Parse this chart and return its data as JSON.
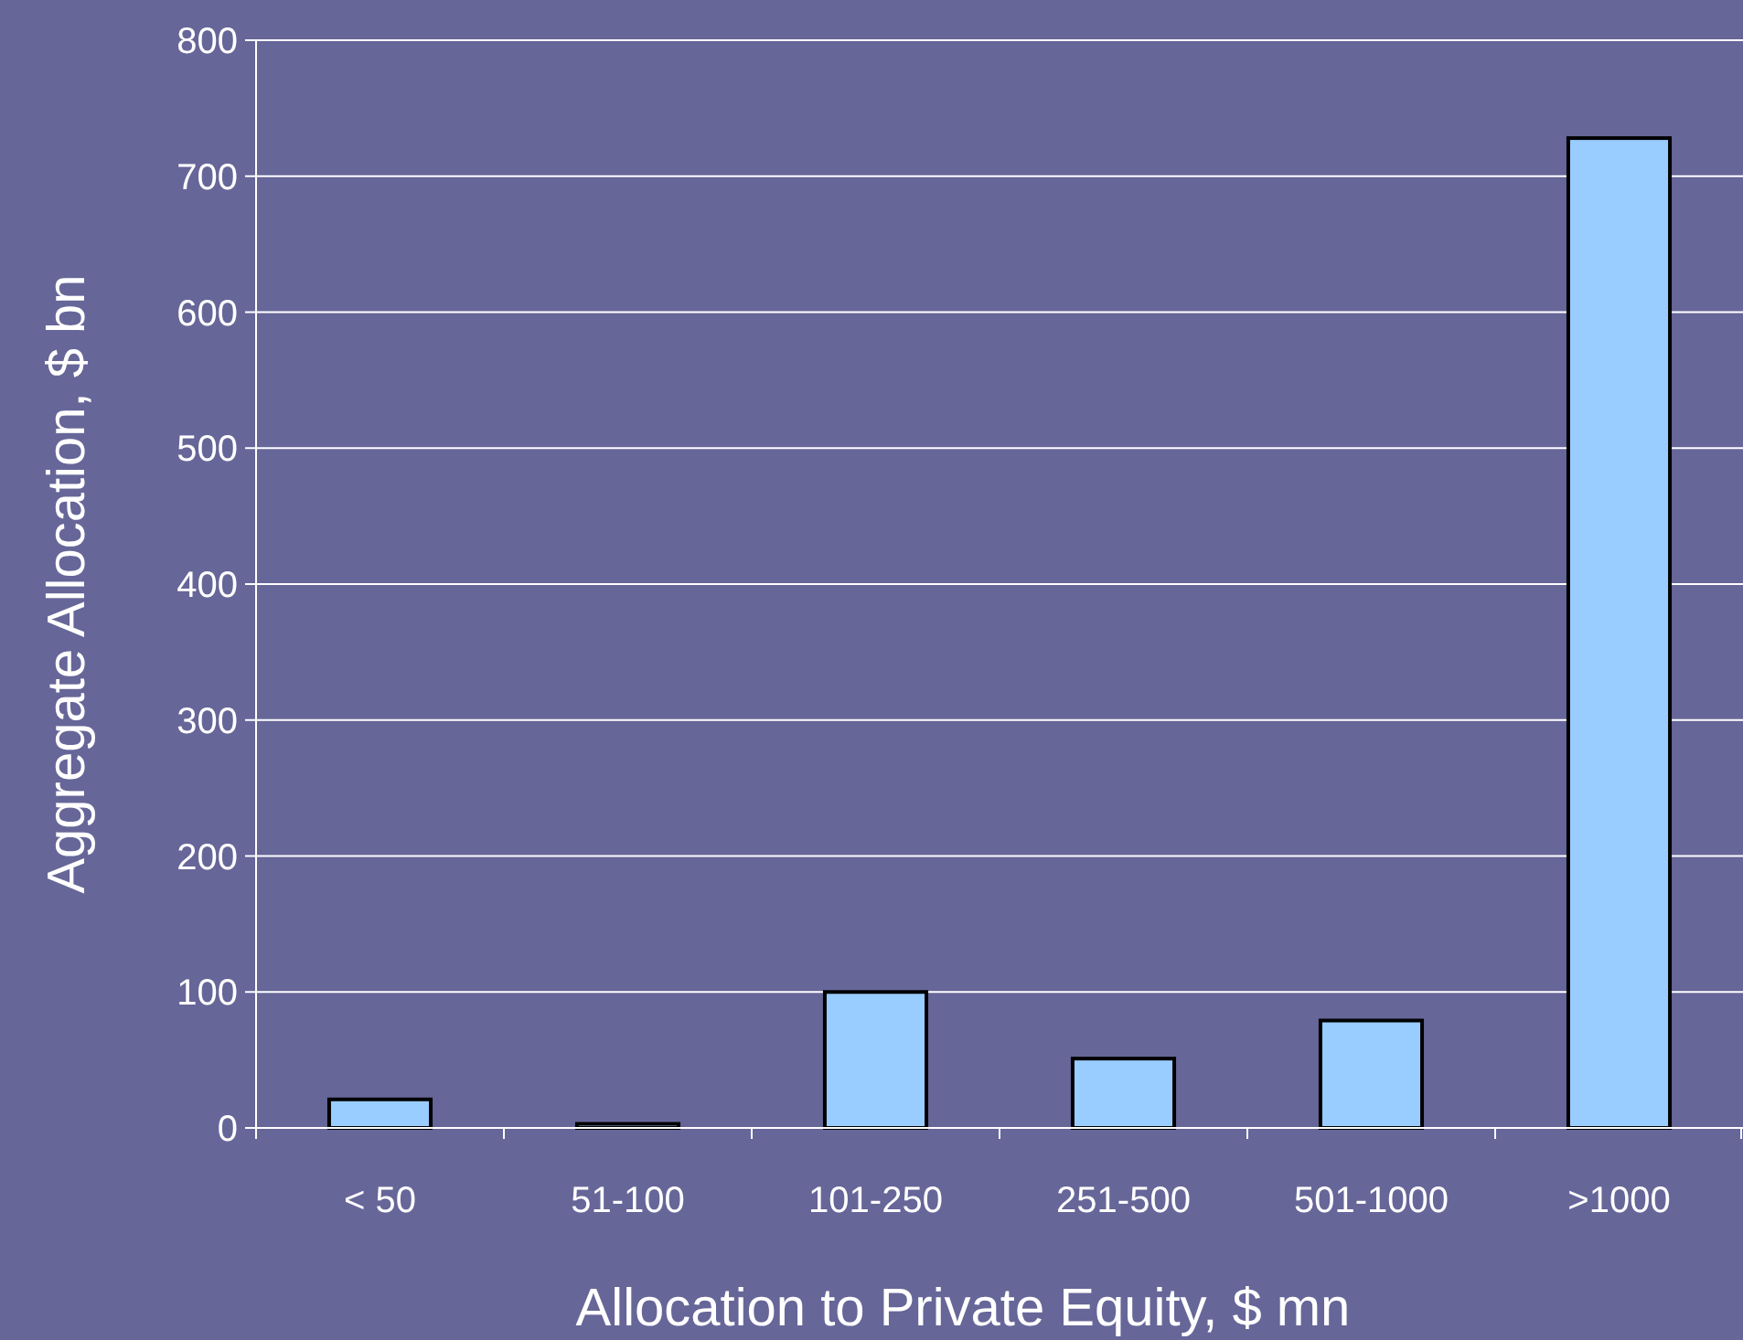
{
  "chart_data": {
    "type": "bar",
    "xlabel": "Allocation to Private Equity, $ mn",
    "ylabel": "Aggregate Allocation, $ bn",
    "categories": [
      "< 50",
      "51-100",
      "101-250",
      "251-500",
      "501-1000",
      ">1000"
    ],
    "values": [
      21,
      3,
      100,
      51,
      79,
      728
    ],
    "color": "#99ccff",
    "ylim": [
      0,
      800
    ],
    "yticks": [
      0,
      100,
      200,
      300,
      400,
      500,
      600,
      700,
      800
    ],
    "grid": "y"
  }
}
